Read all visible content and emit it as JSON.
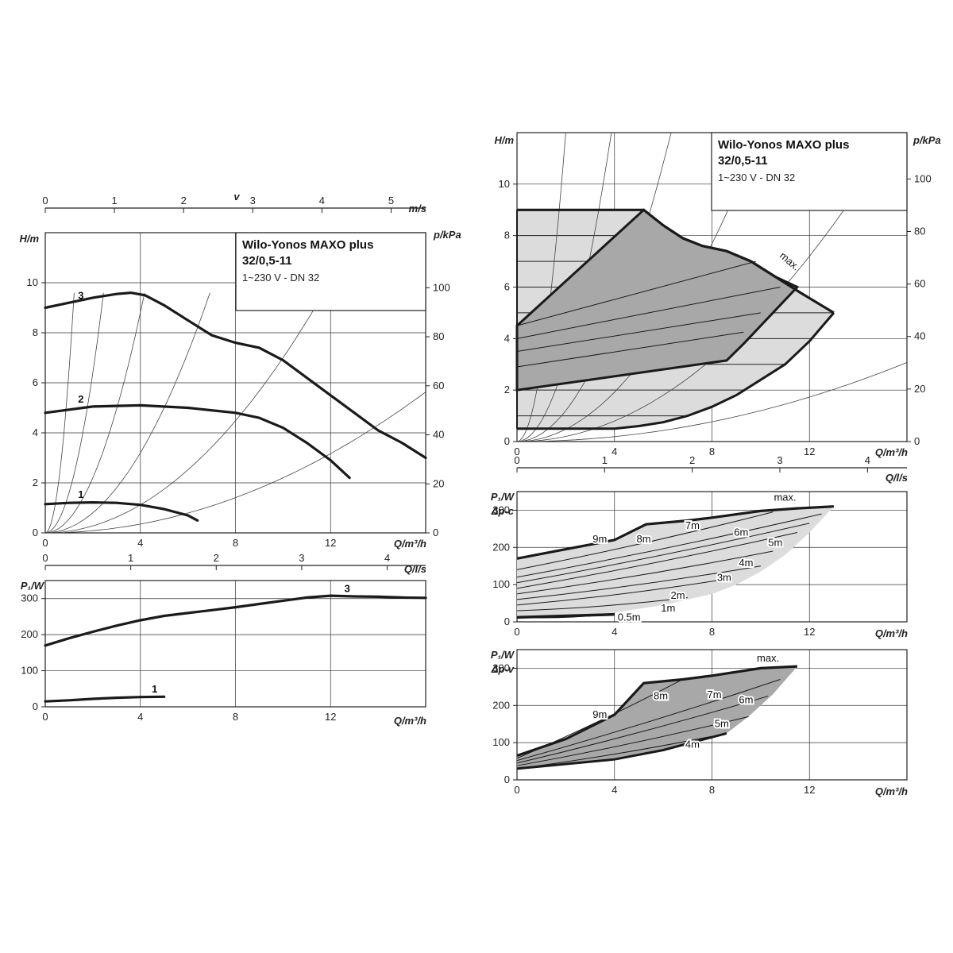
{
  "chart_data": [
    {
      "id": "left-head",
      "type": "line",
      "title": "Wilo-Yonos MAXO plus",
      "subtitle": "32/0,5-11",
      "caption": "1~230 V - DN 32",
      "ylabel": "H/m",
      "ylabel2": "p/kPa",
      "xlabel": "Q/m³/h",
      "xlabel_top": "v",
      "xunit_top": "m/s",
      "xlabel_mid": "Q/l/s",
      "xlim": [
        0,
        16
      ],
      "ylim": [
        0,
        12
      ],
      "x_ticks": [
        "0",
        "4",
        "8",
        "12"
      ],
      "y_ticks": [
        "0",
        "2",
        "4",
        "6",
        "8",
        "10"
      ],
      "y2_ticks": [
        "0",
        "20",
        "40",
        "60",
        "80",
        "100"
      ],
      "top_ticks": [
        "0",
        "1",
        "2",
        "3",
        "4",
        "5"
      ],
      "mid_ticks": [
        "0",
        "1",
        "2",
        "3",
        "4"
      ],
      "series": [
        {
          "name": "3",
          "x": [
            0,
            1,
            2,
            3,
            3.6,
            4.2,
            5,
            6,
            7,
            8,
            9,
            10,
            11,
            12,
            13,
            14,
            15,
            16
          ],
          "y": [
            9.0,
            9.2,
            9.4,
            9.55,
            9.6,
            9.5,
            9.1,
            8.5,
            7.9,
            7.6,
            7.4,
            6.9,
            6.2,
            5.5,
            4.8,
            4.1,
            3.6,
            3.0
          ]
        },
        {
          "name": "2",
          "x": [
            0,
            2,
            4,
            6,
            8,
            9,
            10,
            11,
            12,
            12.8
          ],
          "y": [
            4.8,
            5.05,
            5.1,
            5.0,
            4.8,
            4.6,
            4.2,
            3.6,
            2.9,
            2.2
          ]
        },
        {
          "name": "1",
          "x": [
            0,
            1,
            2,
            3,
            4,
            5,
            6,
            6.4
          ],
          "y": [
            1.15,
            1.2,
            1.22,
            1.2,
            1.12,
            0.95,
            0.7,
            0.5
          ]
        }
      ],
      "system_curve_k": [
        6.5,
        1.6,
        0.55,
        0.2,
        0.07,
        0.022
      ],
      "system_curve_xmax": [
        3.4,
        6.5,
        11.0,
        16.0,
        16.0,
        16.0
      ]
    },
    {
      "id": "left-power",
      "type": "line",
      "ylabel": "P₁/W",
      "xlabel": "Q/m³/h",
      "xlim": [
        0,
        16
      ],
      "ylim": [
        0,
        350
      ],
      "x_ticks": [
        "0",
        "4",
        "8",
        "12"
      ],
      "y_ticks": [
        "0",
        "100",
        "200",
        "300"
      ],
      "series": [
        {
          "name": "3",
          "x": [
            0,
            1,
            2,
            3,
            4,
            5,
            6,
            7,
            8,
            9,
            10,
            11,
            12,
            13,
            14,
            15,
            16
          ],
          "y": [
            170,
            190,
            208,
            225,
            240,
            252,
            260,
            268,
            276,
            285,
            294,
            303,
            308,
            306,
            305,
            303,
            302
          ]
        },
        {
          "name": "1",
          "x": [
            0,
            1,
            2,
            3,
            4,
            5
          ],
          "y": [
            15,
            18,
            22,
            25,
            27,
            28
          ]
        }
      ]
    },
    {
      "id": "right-head",
      "type": "line",
      "title": "Wilo-Yonos MAXO plus",
      "subtitle": "32/0,5-11",
      "caption": "1~230 V - DN 32",
      "ylabel": "H/m",
      "ylabel2": "p/kPa",
      "xlabel": "Q/m³/h",
      "xlabel_mid": "Q/l/s",
      "xlim": [
        0,
        16
      ],
      "ylim": [
        0,
        12
      ],
      "x_ticks": [
        "0",
        "4",
        "8",
        "12"
      ],
      "y_ticks": [
        "0",
        "2",
        "4",
        "6",
        "8",
        "10"
      ],
      "y2_ticks": [
        "0",
        "20",
        "40",
        "60",
        "80",
        "100"
      ],
      "mid_ticks": [
        "0",
        "1",
        "2",
        "3",
        "4"
      ],
      "max_label": "max.",
      "max_curve": {
        "x": [
          0,
          5.2,
          6,
          6.8,
          7.6,
          8.6,
          9.6,
          10.6,
          11.6,
          13.0
        ],
        "y": [
          9.0,
          9.0,
          8.4,
          7.9,
          7.6,
          7.4,
          7.0,
          6.4,
          5.8,
          5.0
        ]
      },
      "lower_envelope": {
        "x": [
          13.0,
          12.0,
          11.0,
          10.0,
          9.0,
          8.0,
          7.0,
          6.0,
          5.0,
          4.0,
          0
        ],
        "y": [
          5.0,
          3.9,
          3.0,
          2.4,
          1.8,
          1.35,
          1.0,
          0.75,
          0.6,
          0.5,
          0.5
        ]
      },
      "dp_v_region": {
        "x": [
          0,
          5.2,
          6,
          6.8,
          7.6,
          8.6,
          9.6,
          10.6,
          11.5,
          9.3,
          8.6,
          0
        ],
        "y": [
          4.5,
          9.0,
          8.4,
          7.9,
          7.6,
          7.4,
          7.0,
          6.4,
          6.0,
          3.8,
          3.15,
          2.0
        ]
      },
      "dp_c_levels": [
        1,
        2,
        3,
        4,
        5,
        6,
        7,
        8,
        9
      ],
      "dp_v_lines": [
        {
          "y0": 2.0,
          "y1": 3.15,
          "x1": 8.6
        },
        {
          "y0": 2.9,
          "y1": 4.25,
          "x1": 9.3
        },
        {
          "y0": 3.5,
          "y1": 5.0,
          "x1": 10.0
        },
        {
          "y0": 4.0,
          "y1": 6.0,
          "x1": 10.8
        },
        {
          "y0": 4.5,
          "y1": 7.0,
          "x1": 9.8
        }
      ],
      "system_curve_k": [
        3.0,
        0.8,
        0.3,
        0.12,
        0.05,
        0.012
      ],
      "system_curve_xmax": [
        6.0,
        11.6,
        16.0,
        16.0,
        16.0,
        16.0
      ]
    },
    {
      "id": "right-power-c",
      "type": "line",
      "ylabel": "P₁/W",
      "mode_label": "Δp-c",
      "xlabel": "Q/m³/h",
      "xlim": [
        0,
        16
      ],
      "ylim": [
        0,
        350
      ],
      "x_ticks": [
        "0",
        "4",
        "8",
        "12"
      ],
      "y_ticks": [
        "0",
        "100",
        "200",
        "300"
      ],
      "max_label": "max.",
      "labels": [
        "0.5m",
        "1m",
        "2m",
        "3m",
        "4m",
        "5m",
        "6m",
        "7m",
        "8m",
        "9m"
      ],
      "upper": {
        "x": [
          0,
          2,
          4,
          5.3,
          7,
          8,
          10,
          11.5,
          13.0
        ],
        "y": [
          170,
          195,
          220,
          262,
          272,
          280,
          298,
          305,
          310
        ]
      },
      "lower_edge": {
        "x": [
          13.0,
          12,
          11,
          10,
          9,
          8,
          6,
          4,
          0
        ],
        "y": [
          310,
          240,
          180,
          135,
          100,
          75,
          45,
          25,
          10
        ]
      },
      "contours": [
        {
          "y0": 12,
          "x1": 4,
          "y1": 22
        },
        {
          "y0": 30,
          "x1": 7,
          "y1": 65
        },
        {
          "y0": 45,
          "x1": 8.6,
          "y1": 115
        },
        {
          "y0": 60,
          "x1": 10,
          "y1": 150
        },
        {
          "y0": 75,
          "x1": 10.5,
          "y1": 190
        },
        {
          "y0": 90,
          "x1": 11.5,
          "y1": 240
        },
        {
          "y0": 105,
          "x1": 12,
          "y1": 265
        },
        {
          "y0": 120,
          "x1": 12.5,
          "y1": 290
        },
        {
          "y0": 140,
          "x1": 10.5,
          "y1": 295
        }
      ]
    },
    {
      "id": "right-power-v",
      "type": "line",
      "ylabel": "P₁/W",
      "mode_label": "Δp-v",
      "xlabel": "Q/m³/h",
      "xlim": [
        0,
        16
      ],
      "ylim": [
        0,
        350
      ],
      "x_ticks": [
        "0",
        "4",
        "8",
        "12"
      ],
      "y_ticks": [
        "0",
        "100",
        "200",
        "300"
      ],
      "max_label": "max.",
      "labels": [
        "4m",
        "5m",
        "6m",
        "7m",
        "8m",
        "9m"
      ],
      "upper": {
        "x": [
          0,
          2,
          4,
          5.2,
          6.8,
          8,
          10,
          11.5
        ],
        "y": [
          65,
          110,
          175,
          260,
          270,
          280,
          300,
          305
        ]
      },
      "lower_edge": {
        "x": [
          11.5,
          10.5,
          9.5,
          8.6,
          6,
          4,
          0
        ],
        "y": [
          305,
          230,
          170,
          125,
          80,
          55,
          30
        ]
      },
      "contours": [
        {
          "y0": 30,
          "x1": 8.6,
          "y1": 125
        },
        {
          "y0": 38,
          "x1": 9.5,
          "y1": 170
        },
        {
          "y0": 45,
          "x1": 10.3,
          "y1": 225
        },
        {
          "y0": 52,
          "x1": 10.8,
          "y1": 270
        },
        {
          "y0": 58,
          "x1": 6.8,
          "y1": 270
        }
      ]
    }
  ]
}
